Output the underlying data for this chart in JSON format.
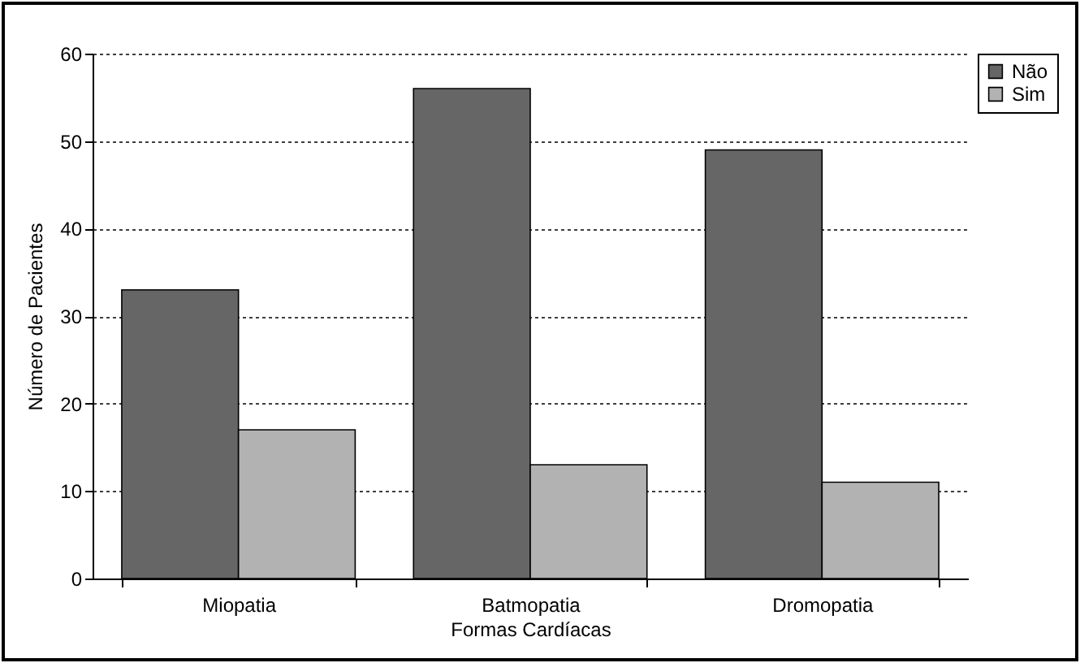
{
  "chart_data": {
    "type": "bar",
    "xlabel": "Formas Cardíacas",
    "ylabel": "Número de Pacientes",
    "categories": [
      "Miopatia",
      "Batmopatia",
      "Dromopatia"
    ],
    "series": [
      {
        "name": "Não",
        "color": "#666666",
        "values": [
          33,
          56,
          49
        ]
      },
      {
        "name": "Sim",
        "color": "#b2b2b2",
        "values": [
          17,
          13,
          11
        ]
      }
    ],
    "ylim": [
      0,
      60
    ],
    "yticks": [
      0,
      10,
      20,
      30,
      40,
      50,
      60
    ],
    "grid": "y",
    "legend": "right"
  }
}
